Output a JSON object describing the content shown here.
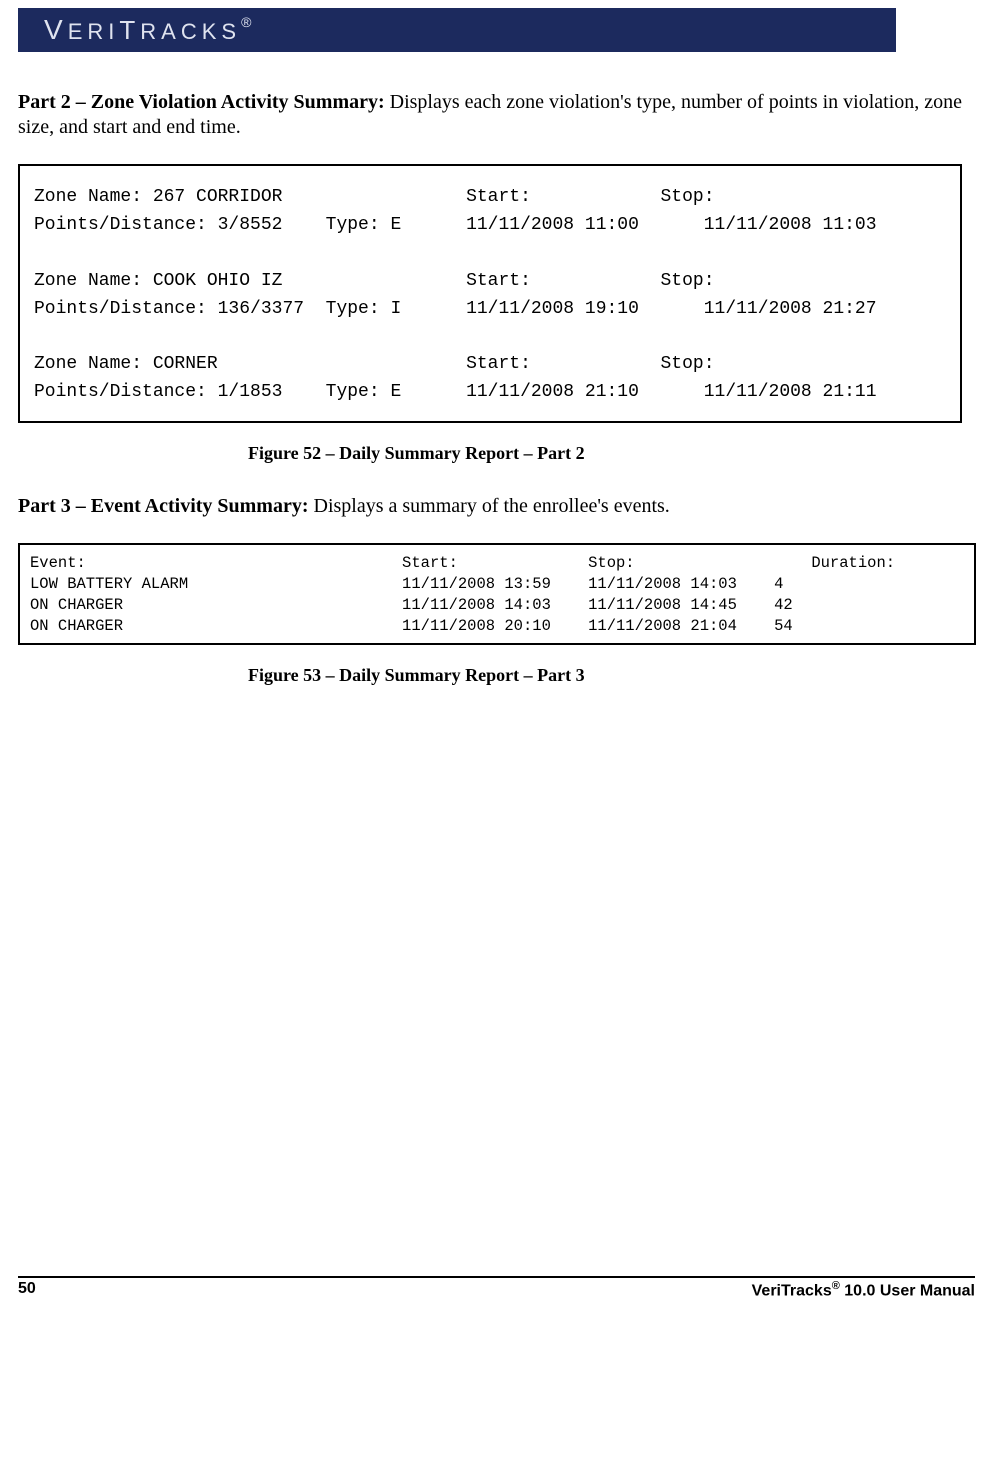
{
  "header": {
    "brand_plain": "VERITRACKS",
    "brand_reg": "®",
    "bar_color": "#1c2a5e",
    "text_color": "#dfe3ef"
  },
  "part2": {
    "title": "Part 2 – Zone Violation Activity Summary:",
    "desc": " Displays each zone violation's type, number of points in violation, zone size, and start and end time."
  },
  "zone_box": {
    "labels": {
      "zone_name": "Zone Name:",
      "points": "Points/Distance:",
      "type": "Type:",
      "start": "Start:",
      "stop": "Stop:"
    },
    "rows": [
      {
        "name": "267 CORRIDOR",
        "points": "3/8552",
        "type": "E",
        "start": "11/11/2008 11:00",
        "stop": "11/11/2008 11:03"
      },
      {
        "name": "COOK OHIO IZ",
        "points": "136/3377",
        "type": "I",
        "start": "11/11/2008 19:10",
        "stop": "11/11/2008 21:27"
      },
      {
        "name": "CORNER",
        "points": "1/1853",
        "type": "E",
        "start": "11/11/2008 21:10",
        "stop": "11/11/2008 21:11"
      }
    ]
  },
  "figure52_caption": "Figure 52 – Daily Summary Report – Part 2",
  "part3": {
    "title": "Part 3 – Event Activity Summary:",
    "desc": " Displays a summary of the enrollee's events."
  },
  "event_box": {
    "labels": {
      "event": "Event:",
      "start": "Start:",
      "stop": "Stop:",
      "duration": "Duration:"
    },
    "rows": [
      {
        "event": "LOW BATTERY ALARM",
        "start": "11/11/2008 13:59",
        "stop": "11/11/2008 14:03",
        "duration": "4"
      },
      {
        "event": "ON CHARGER",
        "start": "11/11/2008 14:03",
        "stop": "11/11/2008 14:45",
        "duration": "42"
      },
      {
        "event": "ON CHARGER",
        "start": "11/11/2008 20:10",
        "stop": "11/11/2008 21:04",
        "duration": "54"
      }
    ]
  },
  "figure53_caption": "Figure 53 – Daily Summary Report – Part 3",
  "footer": {
    "page_number": "50",
    "product": "VeriTracks",
    "reg": "®",
    "version": " 10.0 User Manual"
  }
}
